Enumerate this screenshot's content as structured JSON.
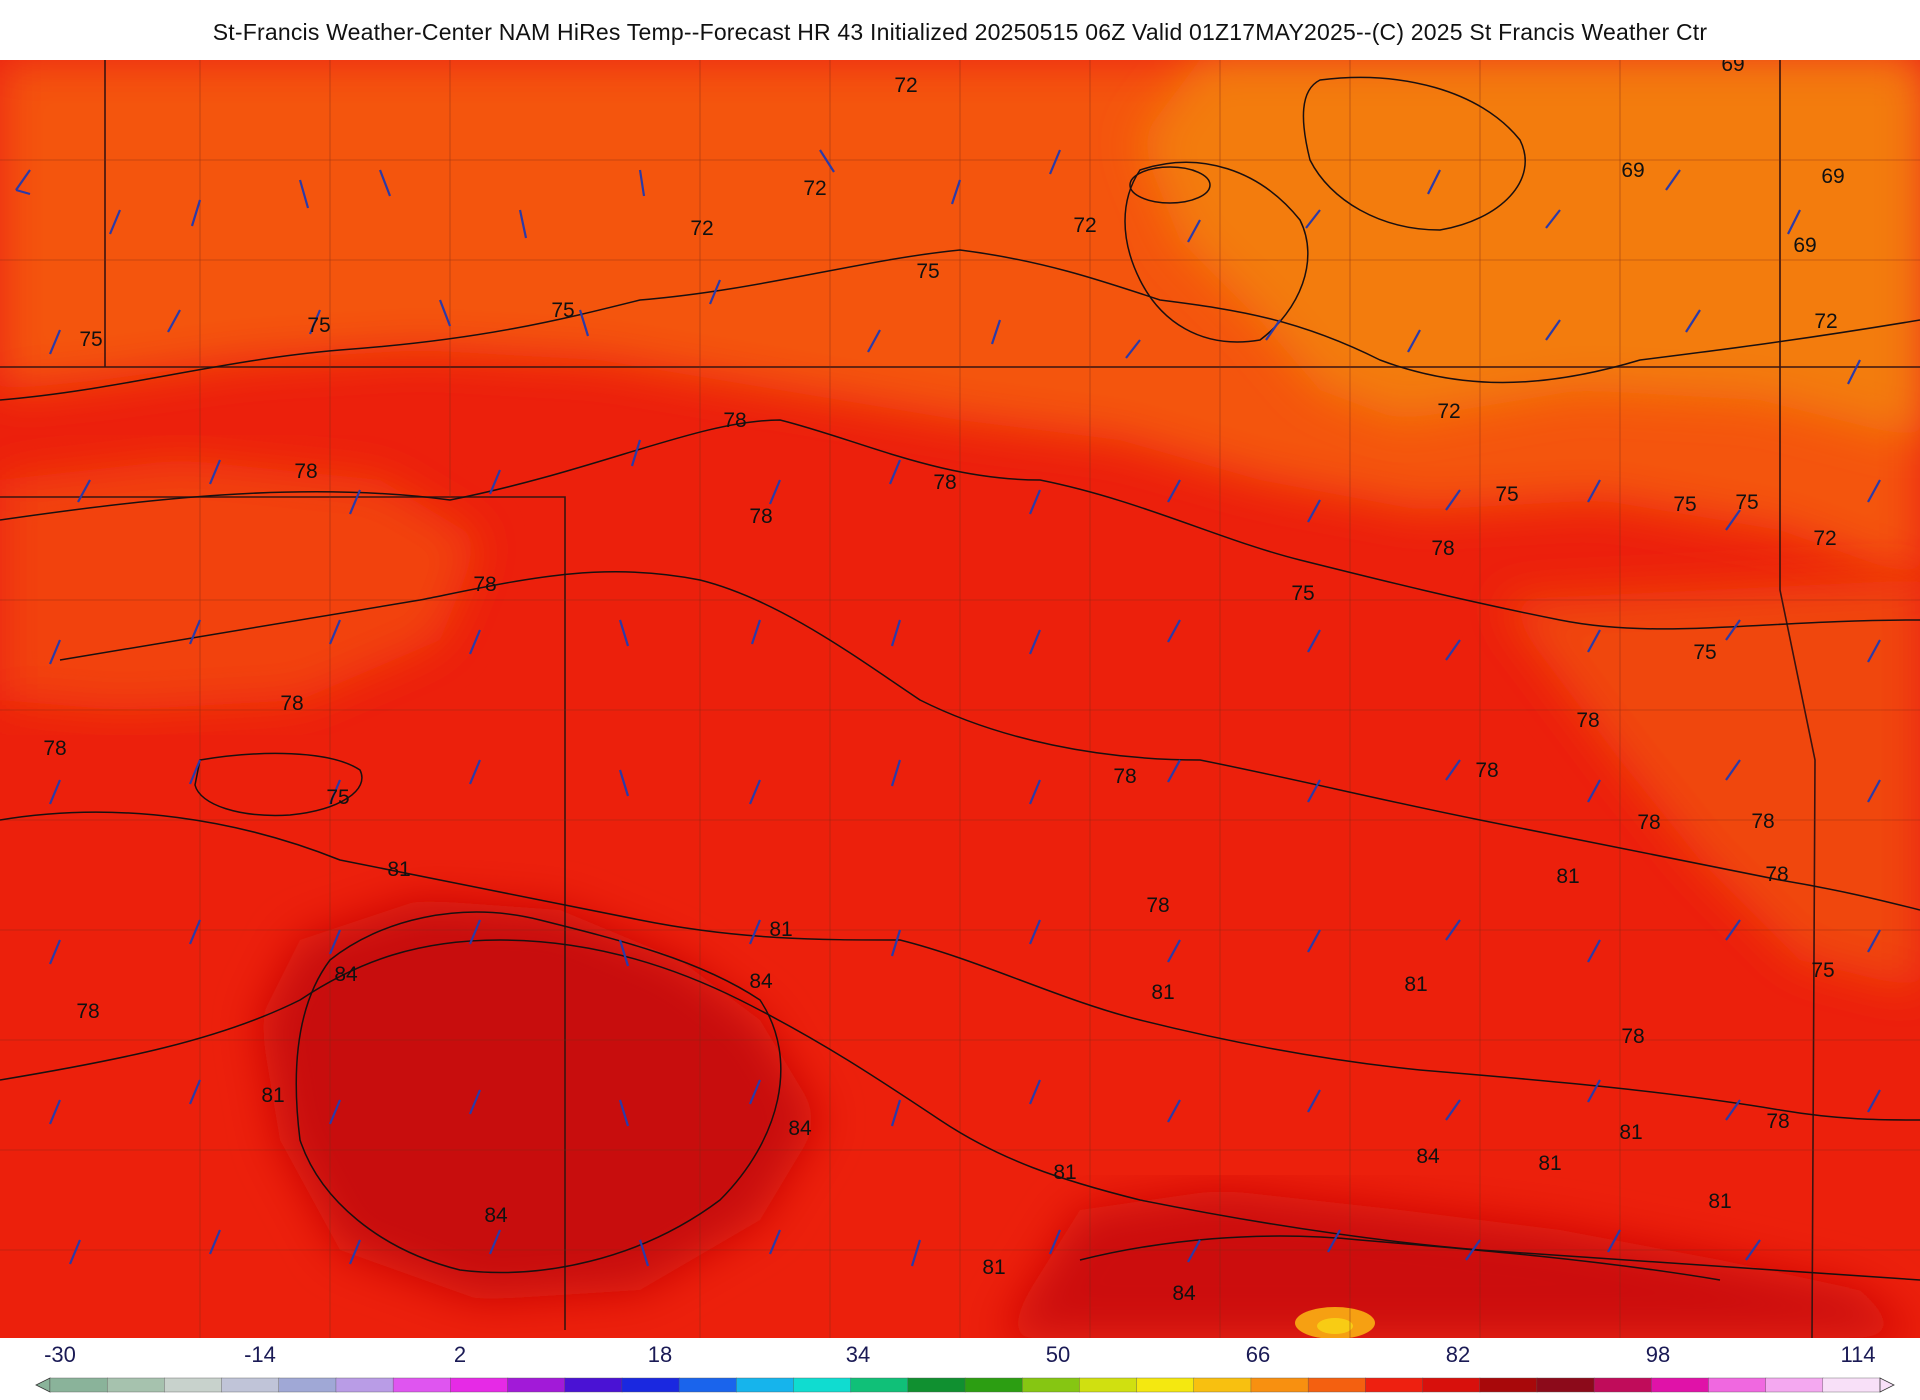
{
  "title": "St-Francis Weather-Center NAM HiRes Temp--Forecast HR 43 Initialized 20250515 06Z Valid 01Z17MAY2025--(C) 2025 St Francis Weather Ctr",
  "map": {
    "contour_labels": [
      "69",
      "69",
      "69",
      "69",
      "72",
      "72",
      "72",
      "72",
      "72",
      "72",
      "72",
      "75",
      "75",
      "75",
      "75",
      "75",
      "75",
      "75",
      "75",
      "75",
      "75",
      "75",
      "78",
      "78",
      "78",
      "78",
      "78",
      "78",
      "78",
      "78",
      "78",
      "78",
      "78",
      "78",
      "78",
      "78",
      "78",
      "78",
      "78",
      "78",
      "81",
      "81",
      "81",
      "81",
      "81",
      "81",
      "81",
      "81",
      "81",
      "81",
      "81",
      "84",
      "84",
      "84",
      "84",
      "84",
      "84"
    ],
    "colors": {
      "cool": "#f07a10",
      "mid": "#f44a0c",
      "warm": "#e8180c",
      "hot": "#c50c0a",
      "barbs": "#2b3aa8",
      "contours": "#1a1010"
    }
  },
  "colorbar": {
    "tick_labels": [
      "-30",
      "-14",
      "2",
      "18",
      "34",
      "50",
      "66",
      "82",
      "98",
      "114"
    ],
    "colors": [
      "#8ab39a",
      "#a6c2ae",
      "#c8d2cc",
      "#c0c4d8",
      "#a0a8d6",
      "#b99ce6",
      "#df55f0",
      "#e62ae6",
      "#a21ad8",
      "#4a12d4",
      "#1a28e0",
      "#1a64ec",
      "#16b4ec",
      "#10dcd0",
      "#10c078",
      "#109030",
      "#2c9e12",
      "#86c612",
      "#d0e010",
      "#f4e810",
      "#f8c010",
      "#f89010",
      "#f46010",
      "#ee2010",
      "#d8100c",
      "#a8080a",
      "#8c0a1a",
      "#c00c5a",
      "#e012a8",
      "#f068e0",
      "#f4a8f0",
      "#f8e0f8"
    ]
  }
}
